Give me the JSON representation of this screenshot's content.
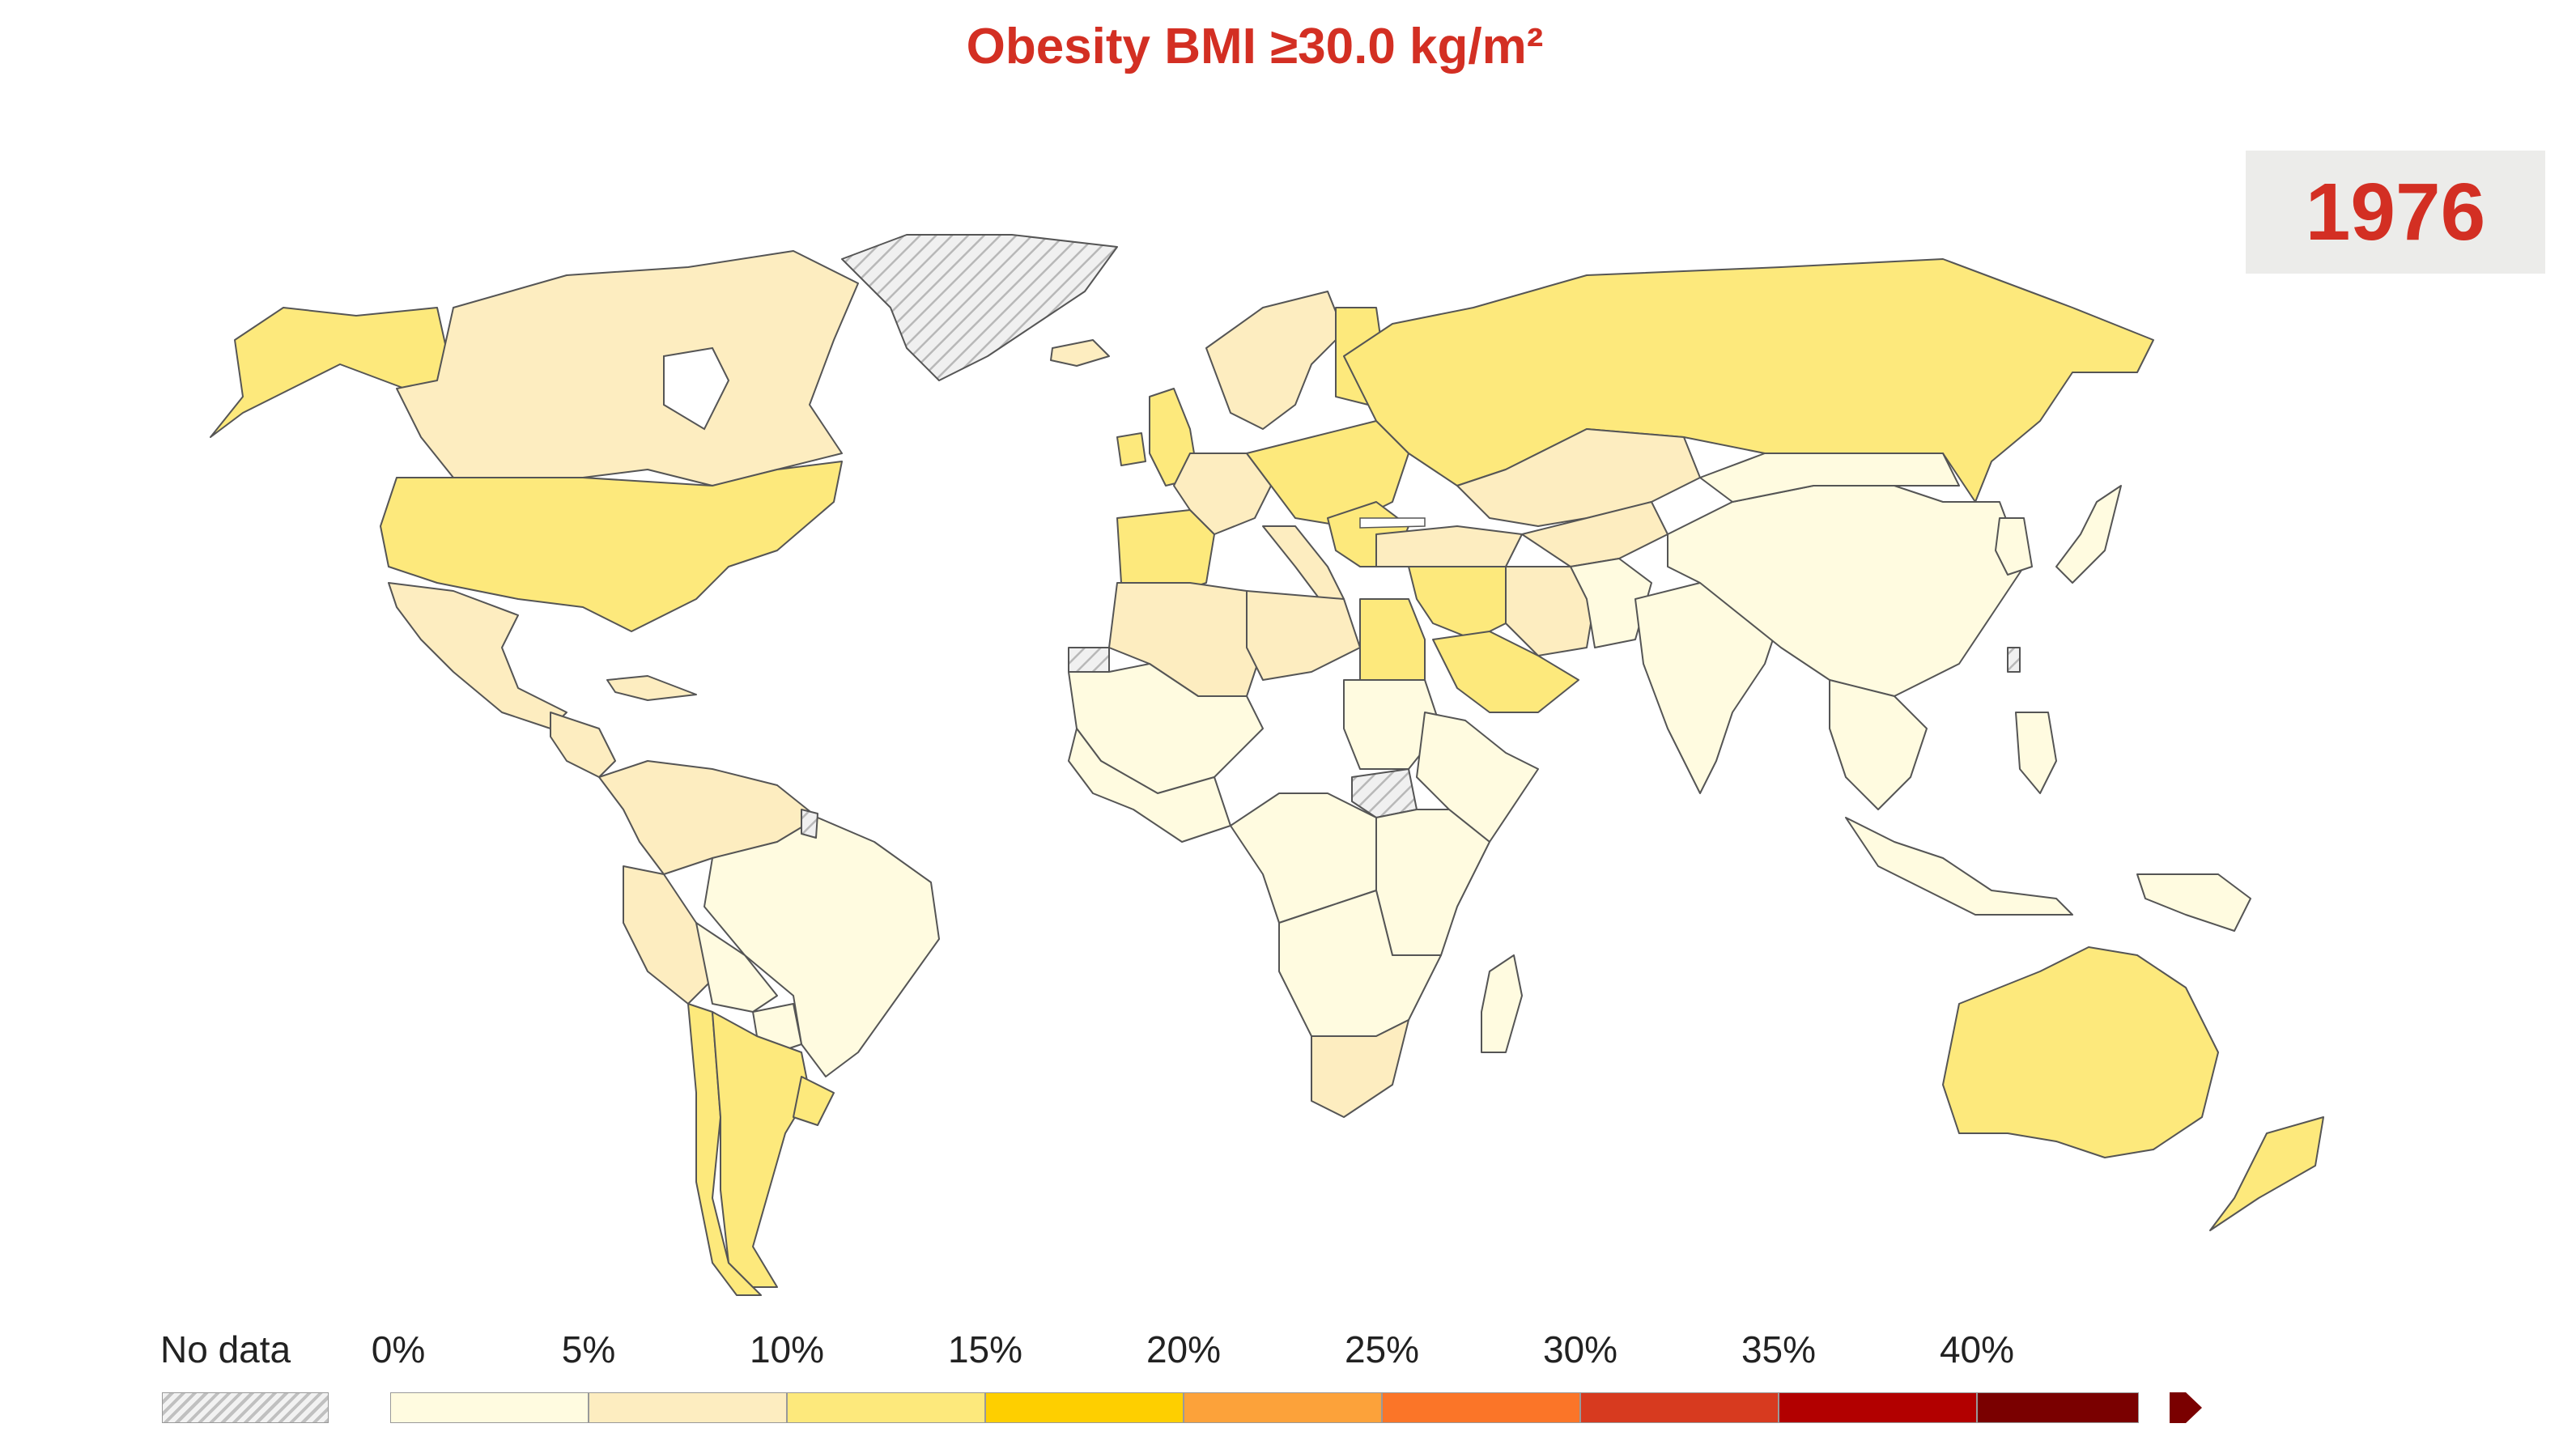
{
  "title": "Obesity BMI ≥30.0 kg/m²",
  "year": "1976",
  "legend": {
    "no_data_label": "No data",
    "ticks": [
      "0%",
      "5%",
      "10%",
      "15%",
      "20%",
      "25%",
      "30%",
      "35%",
      "40%"
    ],
    "bins": [
      {
        "range": "0-5%",
        "color": "#fffbe0"
      },
      {
        "range": "5-10%",
        "color": "#fdedc0"
      },
      {
        "range": "10-15%",
        "color": "#fde97c"
      },
      {
        "range": "15-20%",
        "color": "#fecf00"
      },
      {
        "range": "20-25%",
        "color": "#fca23a"
      },
      {
        "range": "25-30%",
        "color": "#fb7528"
      },
      {
        "range": "30-35%",
        "color": "#d73a1f"
      },
      {
        "range": "35-40%",
        "color": "#b20000"
      },
      {
        "range": ">40%",
        "color": "#7a0000"
      }
    ]
  },
  "regions": [
    {
      "name": "Alaska (USA)",
      "bin": 2
    },
    {
      "name": "Canada",
      "bin": 1
    },
    {
      "name": "Greenland",
      "bin": -1
    },
    {
      "name": "Iceland",
      "bin": 1
    },
    {
      "name": "USA",
      "bin": 2
    },
    {
      "name": "Mexico",
      "bin": 1
    },
    {
      "name": "Central America",
      "bin": 1
    },
    {
      "name": "Cuba",
      "bin": 1
    },
    {
      "name": "Colombia / Venezuela",
      "bin": 1
    },
    {
      "name": "Peru",
      "bin": 1
    },
    {
      "name": "Brazil",
      "bin": 0
    },
    {
      "name": "Bolivia",
      "bin": 0
    },
    {
      "name": "Paraguay",
      "bin": 0
    },
    {
      "name": "Chile",
      "bin": 2
    },
    {
      "name": "Argentina",
      "bin": 2
    },
    {
      "name": "Uruguay",
      "bin": 2
    },
    {
      "name": "French Guiana",
      "bin": -1
    },
    {
      "name": "UK",
      "bin": 2
    },
    {
      "name": "Ireland",
      "bin": 2
    },
    {
      "name": "Iberia",
      "bin": 2
    },
    {
      "name": "France",
      "bin": 1
    },
    {
      "name": "Scandinavia",
      "bin": 1
    },
    {
      "name": "Finland",
      "bin": 2
    },
    {
      "name": "Central Europe",
      "bin": 2
    },
    {
      "name": "Italy",
      "bin": 1
    },
    {
      "name": "Balkans",
      "bin": 2
    },
    {
      "name": "Turkey",
      "bin": 1
    },
    {
      "name": "Russia",
      "bin": 2
    },
    {
      "name": "Kazakhstan",
      "bin": 1
    },
    {
      "name": "Central Asia",
      "bin": 1
    },
    {
      "name": "Iran",
      "bin": 1
    },
    {
      "name": "Middle East",
      "bin": 2
    },
    {
      "name": "Saudi Arabia",
      "bin": 2
    },
    {
      "name": "Afghanistan / Pakistan",
      "bin": 0
    },
    {
      "name": "India",
      "bin": 0
    },
    {
      "name": "China",
      "bin": 0
    },
    {
      "name": "Mongolia",
      "bin": 0
    },
    {
      "name": "Japan",
      "bin": 0
    },
    {
      "name": "Korea",
      "bin": 0
    },
    {
      "name": "Southeast Asia",
      "bin": 0
    },
    {
      "name": "Taiwan",
      "bin": -1
    },
    {
      "name": "Indonesia",
      "bin": 0
    },
    {
      "name": "Philippines",
      "bin": 0
    },
    {
      "name": "Papua New Guinea",
      "bin": 0
    },
    {
      "name": "Australia",
      "bin": 2
    },
    {
      "name": "New Zealand",
      "bin": 2
    },
    {
      "name": "Western Sahara",
      "bin": -1
    },
    {
      "name": "Morocco / Algeria",
      "bin": 1
    },
    {
      "name": "Libya",
      "bin": 1
    },
    {
      "name": "Egypt",
      "bin": 2
    },
    {
      "name": "Sahel",
      "bin": 0
    },
    {
      "name": "Sudan",
      "bin": 0
    },
    {
      "name": "South Sudan",
      "bin": -1
    },
    {
      "name": "West Africa",
      "bin": 0
    },
    {
      "name": "Horn of Africa",
      "bin": 0
    },
    {
      "name": "Central Africa",
      "bin": 0
    },
    {
      "name": "East Africa",
      "bin": 0
    },
    {
      "name": "Southern Africa",
      "bin": 0
    },
    {
      "name": "South Africa",
      "bin": 1
    },
    {
      "name": "Madagascar",
      "bin": 0
    }
  ]
}
